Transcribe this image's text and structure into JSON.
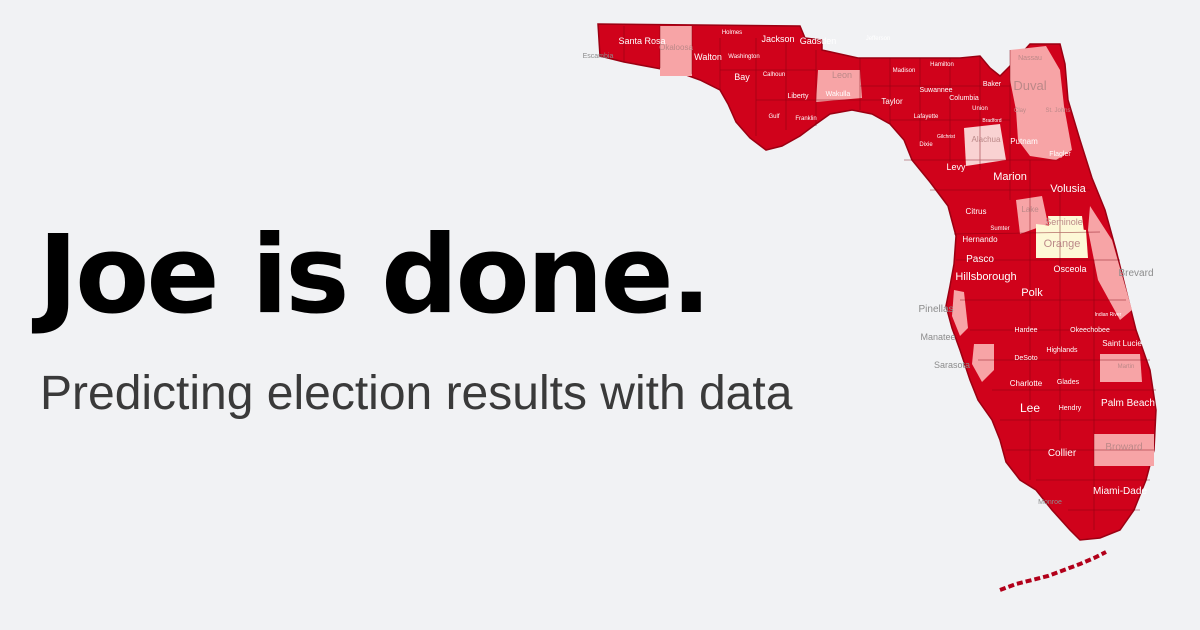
{
  "headline": "Joe is done.",
  "subheadline": "Predicting election results with data",
  "colors": {
    "background": "#f1f2f4",
    "strong_red": "#d0021b",
    "light_red": "#f7a4a6",
    "pale_pink": "#f9d2d2",
    "pale_yellow": "#fdf8d6",
    "county_border": "#7a0010"
  },
  "counties": [
    {
      "name": "Escambia",
      "fill": "strong_red"
    },
    {
      "name": "Santa Rosa",
      "fill": "strong_red"
    },
    {
      "name": "Okaloosa",
      "fill": "light_red"
    },
    {
      "name": "Walton",
      "fill": "strong_red"
    },
    {
      "name": "Holmes",
      "fill": "strong_red"
    },
    {
      "name": "Washington",
      "fill": "strong_red"
    },
    {
      "name": "Jackson",
      "fill": "strong_red"
    },
    {
      "name": "Bay",
      "fill": "strong_red"
    },
    {
      "name": "Calhoun",
      "fill": "strong_red"
    },
    {
      "name": "Gadsden",
      "fill": "strong_red"
    },
    {
      "name": "Leon",
      "fill": "light_red"
    },
    {
      "name": "Liberty",
      "fill": "strong_red"
    },
    {
      "name": "Wakulla",
      "fill": "strong_red"
    },
    {
      "name": "Gulf",
      "fill": "strong_red"
    },
    {
      "name": "Franklin",
      "fill": "strong_red"
    },
    {
      "name": "Jefferson",
      "fill": "strong_red"
    },
    {
      "name": "Madison",
      "fill": "strong_red"
    },
    {
      "name": "Hamilton",
      "fill": "strong_red"
    },
    {
      "name": "Taylor",
      "fill": "strong_red"
    },
    {
      "name": "Suwannee",
      "fill": "strong_red"
    },
    {
      "name": "Lafayette",
      "fill": "strong_red"
    },
    {
      "name": "Columbia",
      "fill": "strong_red"
    },
    {
      "name": "Baker",
      "fill": "strong_red"
    },
    {
      "name": "Union",
      "fill": "strong_red"
    },
    {
      "name": "Bradford",
      "fill": "strong_red"
    },
    {
      "name": "Gilchrist",
      "fill": "strong_red"
    },
    {
      "name": "Nassau",
      "fill": "light_red"
    },
    {
      "name": "Duval",
      "fill": "light_red"
    },
    {
      "name": "Clay",
      "fill": "light_red"
    },
    {
      "name": "St. Johns",
      "fill": "light_red"
    },
    {
      "name": "Alachua",
      "fill": "pale_pink"
    },
    {
      "name": "Dixie",
      "fill": "strong_red"
    },
    {
      "name": "Putnam",
      "fill": "strong_red"
    },
    {
      "name": "Flagler",
      "fill": "strong_red"
    },
    {
      "name": "Levy",
      "fill": "strong_red"
    },
    {
      "name": "Marion",
      "fill": "strong_red"
    },
    {
      "name": "Volusia",
      "fill": "strong_red"
    },
    {
      "name": "Citrus",
      "fill": "strong_red"
    },
    {
      "name": "Lake",
      "fill": "light_red"
    },
    {
      "name": "Sumter",
      "fill": "strong_red"
    },
    {
      "name": "Seminole",
      "fill": "pale_yellow"
    },
    {
      "name": "Orange",
      "fill": "pale_yellow"
    },
    {
      "name": "Hernando",
      "fill": "strong_red"
    },
    {
      "name": "Pasco",
      "fill": "strong_red"
    },
    {
      "name": "Brevard",
      "fill": "light_red"
    },
    {
      "name": "Osceola",
      "fill": "strong_red"
    },
    {
      "name": "Hillsborough",
      "fill": "strong_red"
    },
    {
      "name": "Polk",
      "fill": "strong_red"
    },
    {
      "name": "Pinellas",
      "fill": "light_red"
    },
    {
      "name": "Manatee",
      "fill": "strong_red"
    },
    {
      "name": "Hardee",
      "fill": "strong_red"
    },
    {
      "name": "Okeechobee",
      "fill": "strong_red"
    },
    {
      "name": "Indian River",
      "fill": "strong_red"
    },
    {
      "name": "Saint Lucie",
      "fill": "strong_red"
    },
    {
      "name": "Sarasota",
      "fill": "light_red"
    },
    {
      "name": "DeSoto",
      "fill": "strong_red"
    },
    {
      "name": "Highlands",
      "fill": "strong_red"
    },
    {
      "name": "Martin",
      "fill": "light_red"
    },
    {
      "name": "Charlotte",
      "fill": "strong_red"
    },
    {
      "name": "Glades",
      "fill": "strong_red"
    },
    {
      "name": "Palm Beach",
      "fill": "strong_red"
    },
    {
      "name": "Lee",
      "fill": "strong_red"
    },
    {
      "name": "Hendry",
      "fill": "strong_red"
    },
    {
      "name": "Broward",
      "fill": "light_red"
    },
    {
      "name": "Collier",
      "fill": "strong_red"
    },
    {
      "name": "Miami-Dade",
      "fill": "strong_red"
    },
    {
      "name": "Monroe",
      "fill": "strong_red"
    }
  ]
}
